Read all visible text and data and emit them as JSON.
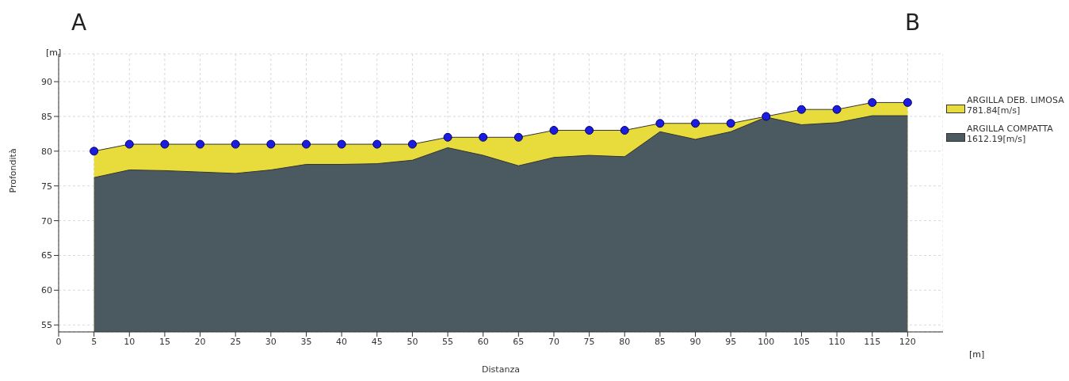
{
  "chart_data": {
    "type": "area",
    "xlabel": "Distanza",
    "ylabel": "Profondità",
    "annotations": [
      "A",
      "B",
      "[m]",
      "[m]"
    ],
    "x": [
      5,
      10,
      15,
      20,
      25,
      30,
      35,
      40,
      45,
      50,
      55,
      60,
      65,
      70,
      75,
      80,
      85,
      90,
      95,
      100,
      105,
      110,
      115,
      120
    ],
    "series": [
      {
        "name": "ARGILLA DEB. LIMOSA\n781.84[m/s]",
        "type": "area",
        "color": "#e8dc3c",
        "values": [
          80,
          81,
          81,
          81,
          81,
          81,
          81,
          81,
          81,
          81,
          82,
          82,
          82,
          83,
          83,
          83,
          84,
          84,
          84,
          85,
          86,
          86,
          87,
          87
        ]
      },
      {
        "name": "ARGILLA COMPATTA\n1612.19[m/s]",
        "type": "area",
        "color": "#4a5a60",
        "values": [
          76.2,
          77.3,
          77.2,
          77,
          76.8,
          77.3,
          78.1,
          78.1,
          78.2,
          78.7,
          80.5,
          79.4,
          77.9,
          79.1,
          79.4,
          79.2,
          82.8,
          81.7,
          82.8,
          84.9,
          83.8,
          84.1,
          85.1,
          85.1
        ]
      },
      {
        "type": "scatter",
        "color": "#1c1ce0",
        "marker": "circle",
        "values": [
          80,
          81,
          81,
          81,
          81,
          81,
          81,
          81,
          81,
          81,
          82,
          82,
          82,
          83,
          83,
          83,
          84,
          84,
          84,
          85,
          86,
          86,
          87,
          87
        ]
      }
    ],
    "xlim": [
      0,
      125
    ],
    "xticks": [
      0,
      5,
      10,
      15,
      20,
      25,
      30,
      35,
      40,
      45,
      50,
      55,
      60,
      65,
      70,
      75,
      80,
      85,
      90,
      95,
      100,
      105,
      110,
      115,
      120
    ],
    "ylim": [
      54,
      94
    ],
    "yticks": [
      55,
      60,
      65,
      70,
      75,
      80,
      85,
      90
    ],
    "grid": true,
    "legend": "right"
  }
}
